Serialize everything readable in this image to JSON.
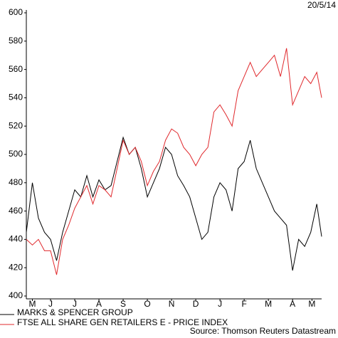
{
  "chart_data": {
    "type": "line",
    "date": "20/5/14",
    "source": "Source: Thomson Reuters Datastream",
    "x": [
      0,
      0.25,
      0.5,
      0.75,
      1,
      1.25,
      1.5,
      1.75,
      2,
      2.25,
      2.5,
      2.75,
      3,
      3.25,
      3.5,
      3.75,
      4,
      4.25,
      4.5,
      4.75,
      5,
      5.25,
      5.5,
      5.75,
      6,
      6.25,
      6.5,
      6.75,
      7,
      7.25,
      7.5,
      7.75,
      8,
      8.25,
      8.5,
      8.75,
      9,
      9.25,
      9.5,
      9.75,
      10,
      10.25,
      10.5,
      10.75,
      11,
      11.25,
      11.5,
      11.75,
      12,
      12.2
    ],
    "series": [
      {
        "name": "MARKS & SPENCER GROUP",
        "color": "#000000",
        "values": [
          445,
          480,
          455,
          445,
          440,
          425,
          445,
          460,
          475,
          470,
          485,
          470,
          482,
          475,
          478,
          495,
          512,
          500,
          505,
          490,
          470,
          480,
          490,
          505,
          500,
          485,
          478,
          470,
          455,
          440,
          445,
          470,
          480,
          475,
          460,
          490,
          495,
          510,
          490,
          480,
          470,
          460,
          455,
          450,
          418,
          440,
          435,
          445,
          465,
          442
        ]
      },
      {
        "name": "FTSE ALL SHARE GEN RETAILERS E - PRICE INDEX",
        "color": "#e0282c",
        "values": [
          440,
          436,
          440,
          432,
          432,
          415,
          440,
          450,
          462,
          470,
          478,
          465,
          478,
          475,
          470,
          490,
          510,
          500,
          505,
          495,
          478,
          488,
          495,
          510,
          518,
          515,
          505,
          500,
          492,
          500,
          505,
          530,
          535,
          528,
          520,
          545,
          555,
          565,
          555,
          560,
          565,
          570,
          555,
          575,
          535,
          545,
          555,
          550,
          558,
          540
        ]
      }
    ],
    "xlim": [
      0,
      12.2
    ],
    "xticks": [
      {
        "value": 0.25,
        "label": "M"
      },
      {
        "value": 1,
        "label": "J"
      },
      {
        "value": 2,
        "label": "J"
      },
      {
        "value": 3,
        "label": "A"
      },
      {
        "value": 4,
        "label": "S"
      },
      {
        "value": 5,
        "label": "O"
      },
      {
        "value": 6,
        "label": "N"
      },
      {
        "value": 7,
        "label": "D"
      },
      {
        "value": 8,
        "label": "J"
      },
      {
        "value": 9,
        "label": "F"
      },
      {
        "value": 10,
        "label": "M"
      },
      {
        "value": 11,
        "label": "A"
      },
      {
        "value": 11.8,
        "label": "M"
      }
    ],
    "ylim": [
      400,
      600
    ],
    "yticks": [
      400,
      420,
      440,
      460,
      480,
      500,
      520,
      540,
      560,
      580,
      600
    ],
    "grid": false
  }
}
